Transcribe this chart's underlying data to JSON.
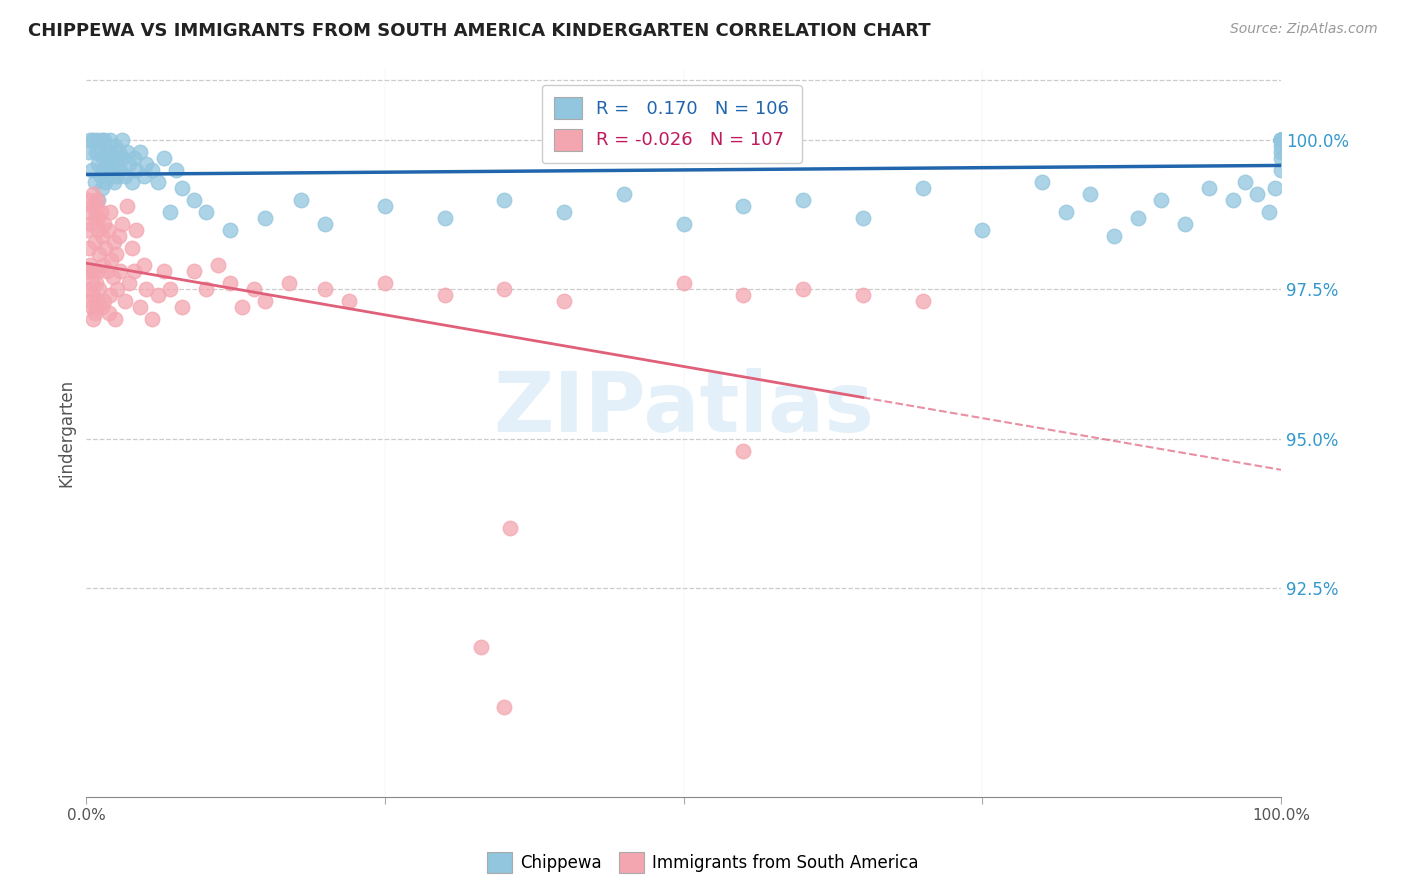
{
  "title": "CHIPPEWA VS IMMIGRANTS FROM SOUTH AMERICA KINDERGARTEN CORRELATION CHART",
  "source": "Source: ZipAtlas.com",
  "ylabel": "Kindergarten",
  "ytick_vals": [
    92.5,
    95.0,
    97.5,
    100.0
  ],
  "ytick_labels": [
    "92.5%",
    "95.0%",
    "97.5%",
    "100.0%"
  ],
  "xlim": [
    0.0,
    100.0
  ],
  "ylim": [
    89.0,
    101.2
  ],
  "blue_R": 0.17,
  "blue_N": 106,
  "pink_R": -0.026,
  "pink_N": 107,
  "blue_color": "#92c5de",
  "pink_color": "#f4a6b0",
  "blue_line_color": "#2166ac",
  "pink_line_color": "#e0607a",
  "legend_blue_label": "Chippewa",
  "legend_pink_label": "Immigrants from South America",
  "watermark": "ZIPatlas",
  "blue_scatter_x": [
    0.2,
    0.3,
    0.5,
    0.6,
    0.7,
    0.8,
    0.9,
    1.0,
    1.0,
    1.1,
    1.2,
    1.3,
    1.3,
    1.4,
    1.5,
    1.5,
    1.6,
    1.7,
    1.8,
    1.9,
    2.0,
    2.0,
    2.1,
    2.2,
    2.3,
    2.4,
    2.5,
    2.6,
    2.7,
    2.8,
    3.0,
    3.0,
    3.2,
    3.4,
    3.6,
    3.8,
    4.0,
    4.2,
    4.5,
    4.8,
    5.0,
    5.5,
    6.0,
    6.5,
    7.0,
    7.5,
    8.0,
    9.0,
    10.0,
    12.0,
    15.0,
    18.0,
    20.0,
    25.0,
    30.0,
    35.0,
    40.0,
    45.0,
    50.0,
    55.0,
    60.0,
    65.0,
    70.0,
    75.0,
    80.0,
    82.0,
    84.0,
    86.0,
    88.0,
    90.0,
    92.0,
    94.0,
    96.0,
    97.0,
    98.0,
    99.0,
    99.5,
    100.0,
    100.0,
    100.0,
    100.0,
    100.0,
    100.0,
    100.0,
    100.0,
    100.0,
    100.0,
    100.0,
    100.0,
    100.0,
    100.0,
    100.0,
    100.0,
    100.0,
    100.0,
    100.0,
    100.0,
    100.0,
    100.0,
    100.0,
    100.0,
    100.0,
    100.0,
    100.0,
    100.0,
    100.0
  ],
  "blue_scatter_y": [
    99.8,
    100.0,
    99.5,
    100.0,
    99.3,
    99.8,
    100.0,
    99.0,
    99.6,
    99.8,
    99.4,
    100.0,
    99.2,
    99.7,
    99.5,
    100.0,
    99.3,
    99.8,
    99.6,
    99.4,
    99.8,
    100.0,
    99.5,
    99.7,
    99.3,
    99.9,
    99.6,
    99.4,
    99.8,
    99.5,
    99.7,
    100.0,
    99.4,
    99.8,
    99.6,
    99.3,
    99.7,
    99.5,
    99.8,
    99.4,
    99.6,
    99.5,
    99.3,
    99.7,
    98.8,
    99.5,
    99.2,
    99.0,
    98.8,
    98.5,
    98.7,
    99.0,
    98.6,
    98.9,
    98.7,
    99.0,
    98.8,
    99.1,
    98.6,
    98.9,
    99.0,
    98.7,
    99.2,
    98.5,
    99.3,
    98.8,
    99.1,
    98.4,
    98.7,
    99.0,
    98.6,
    99.2,
    99.0,
    99.3,
    99.1,
    98.8,
    99.2,
    99.5,
    99.7,
    99.8,
    99.9,
    100.0,
    100.0,
    100.0,
    100.0,
    100.0,
    100.0,
    100.0,
    100.0,
    100.0,
    100.0,
    100.0,
    100.0,
    100.0,
    100.0,
    100.0,
    100.0,
    100.0,
    100.0,
    100.0,
    100.0,
    100.0,
    100.0,
    100.0,
    100.0,
    100.0
  ],
  "pink_scatter_x": [
    0.1,
    0.15,
    0.2,
    0.2,
    0.25,
    0.3,
    0.3,
    0.35,
    0.4,
    0.4,
    0.45,
    0.5,
    0.5,
    0.55,
    0.6,
    0.6,
    0.65,
    0.7,
    0.7,
    0.75,
    0.8,
    0.8,
    0.85,
    0.9,
    0.9,
    0.95,
    1.0,
    1.0,
    1.1,
    1.1,
    1.2,
    1.3,
    1.3,
    1.4,
    1.5,
    1.5,
    1.6,
    1.7,
    1.8,
    1.9,
    2.0,
    2.0,
    2.1,
    2.2,
    2.3,
    2.4,
    2.5,
    2.6,
    2.7,
    2.8,
    3.0,
    3.2,
    3.4,
    3.6,
    3.8,
    4.0,
    4.2,
    4.5,
    4.8,
    5.0,
    5.5,
    6.0,
    6.5,
    7.0,
    8.0,
    9.0,
    10.0,
    11.0,
    12.0,
    13.0,
    14.0,
    15.0,
    17.0,
    20.0,
    22.0,
    25.0,
    30.0,
    35.0,
    40.0,
    50.0,
    55.0,
    60.0,
    65.0,
    70.0,
    33.0,
    35.0,
    35.5,
    55.0
  ],
  "pink_scatter_y": [
    98.5,
    97.8,
    99.0,
    98.2,
    97.5,
    98.8,
    97.9,
    97.3,
    98.6,
    97.8,
    97.2,
    98.9,
    97.6,
    97.0,
    99.1,
    97.4,
    97.8,
    98.7,
    97.1,
    98.3,
    98.9,
    97.2,
    97.6,
    99.0,
    97.3,
    98.5,
    98.7,
    97.8,
    98.1,
    97.5,
    98.8,
    97.2,
    98.4,
    97.9,
    98.6,
    97.3,
    98.2,
    97.8,
    98.5,
    97.1,
    98.8,
    97.4,
    98.0,
    97.7,
    98.3,
    97.0,
    98.1,
    97.5,
    98.4,
    97.8,
    98.6,
    97.3,
    98.9,
    97.6,
    98.2,
    97.8,
    98.5,
    97.2,
    97.9,
    97.5,
    97.0,
    97.4,
    97.8,
    97.5,
    97.2,
    97.8,
    97.5,
    97.9,
    97.6,
    97.2,
    97.5,
    97.3,
    97.6,
    97.5,
    97.3,
    97.6,
    97.4,
    97.5,
    97.3,
    97.6,
    97.4,
    97.5,
    97.4,
    97.3,
    91.5,
    90.5,
    93.5,
    94.8
  ]
}
